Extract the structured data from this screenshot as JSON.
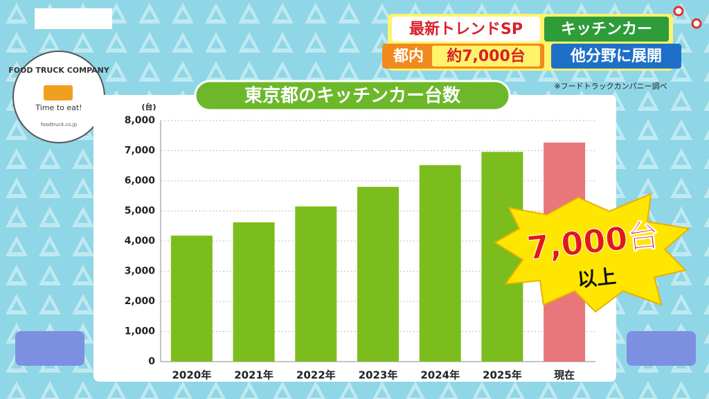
{
  "headline": {
    "tag1": "最新トレンドSP",
    "tag2": "キッチンカー",
    "tag3a": "都内",
    "tag3b": "約7,000台",
    "tag4": "他分野に展開"
  },
  "source": "※フードトラックカンパニー調べ",
  "logo": {
    "name": "FOOD TRUCK COMPANY",
    "slogan": "Time to eat!",
    "url": "foodtruck.co.jp"
  },
  "callout": {
    "main": "7,000台",
    "sub": "以上"
  },
  "chart_data": {
    "type": "bar",
    "title": "東京都のキッチンカー台数",
    "y_unit": "(台)",
    "categories": [
      "2020年",
      "2021年",
      "2022年",
      "2023年",
      "2024年",
      "2025年",
      "現在"
    ],
    "values": [
      4180,
      4620,
      5150,
      5800,
      6520,
      6960,
      7270
    ],
    "colors": [
      "#7cbd1e",
      "#7cbd1e",
      "#7cbd1e",
      "#7cbd1e",
      "#7cbd1e",
      "#7cbd1e",
      "#e8767a"
    ],
    "ylim": [
      0,
      8000
    ],
    "yticks": [
      0,
      {
        "value": 1000,
        "label": "1,000"
      },
      {
        "value": 2000,
        "label": "2,000"
      },
      {
        "value": 3000,
        "label": "3,000"
      },
      {
        "value": 4000,
        "label": "4,000"
      },
      {
        "value": 5000,
        "label": "5,000"
      },
      {
        "value": 6000,
        "label": "6,000"
      },
      {
        "value": 7000,
        "label": "7,000"
      },
      {
        "value": 8000,
        "label": "8,000"
      }
    ],
    "grid": true
  }
}
